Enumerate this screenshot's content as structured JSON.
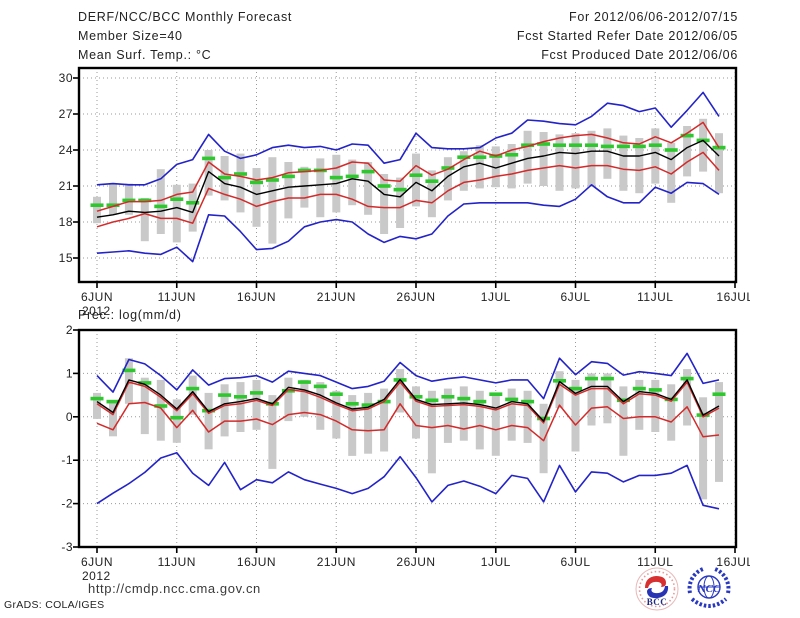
{
  "header": {
    "title": "DERF/NCC/BCC Monthly Forecast",
    "member_size": "Member Size=40",
    "panel1_label": "Mean Surf. Temp.: °C",
    "for_range": "For 2012/06/06-2012/07/15",
    "refer_date": "Fcst Started Refer Date 2012/06/05",
    "produced_date": "Fcst Produced Date 2012/06/06"
  },
  "footer": {
    "url": "http://cmdp.ncc.cma.gov.cn",
    "grads_credit": "GrADS: COLA/IGES",
    "logo_bcc": "BCC",
    "logo_ncc": "NCC"
  },
  "colors": {
    "minmax_line": "#2323c8",
    "quartile_line": "#d42a2a",
    "mean_line": "#000000",
    "obs_dash": "#2ec82e",
    "spread_bar": "#c9c9c9",
    "grid": "#9a9a9a"
  },
  "chart_data": [
    {
      "type": "line",
      "title": "Mean Surf. Temp.: °C",
      "ylabel": "°C",
      "ylim": [
        13,
        30.8
      ],
      "yticks": [
        30,
        27,
        24,
        21,
        18,
        15
      ],
      "x_tick_labels": [
        "6JUN",
        "11JUN",
        "16JUN",
        "21JUN",
        "26JUN",
        "1JUL",
        "6JUL",
        "11JUL",
        "16JUL"
      ],
      "x_tick_days": [
        1,
        6,
        11,
        16,
        21,
        26,
        31,
        36,
        41
      ],
      "year_label": "2012",
      "grid": true,
      "legend": "none",
      "series": {
        "ens_max": [
          21.1,
          21.2,
          21.1,
          21.1,
          21.6,
          22.8,
          23.2,
          25.3,
          23.9,
          23.3,
          23.6,
          24.2,
          24.4,
          24.2,
          24.3,
          24.0,
          24.5,
          24.4,
          22.9,
          23.2,
          25.4,
          24.2,
          24.1,
          24.1,
          24.2,
          25.0,
          25.4,
          26.5,
          26.4,
          26.2,
          26.1,
          26.8,
          27.9,
          27.7,
          27.2,
          27.5,
          25.9,
          27.3,
          28.8,
          26.8
        ],
        "ens_p75": [
          18.9,
          19.3,
          19.7,
          19.7,
          19.8,
          20.3,
          20.5,
          23.0,
          22.0,
          21.8,
          21.5,
          21.7,
          22.1,
          22.2,
          22.3,
          22.5,
          23.0,
          22.9,
          21.5,
          21.4,
          22.7,
          21.9,
          22.4,
          23.2,
          23.9,
          23.5,
          24.0,
          24.3,
          24.7,
          25.0,
          25.2,
          25.3,
          25.0,
          24.6,
          24.5,
          25.1,
          24.6,
          25.4,
          26.3,
          24.2
        ],
        "ens_mean": [
          18.4,
          18.6,
          18.9,
          18.8,
          18.9,
          19.2,
          18.8,
          22.2,
          21.2,
          20.9,
          20.3,
          20.6,
          20.9,
          21.0,
          21.1,
          21.2,
          21.6,
          21.4,
          20.3,
          20.1,
          21.3,
          20.6,
          21.8,
          22.6,
          22.9,
          22.5,
          22.9,
          23.3,
          23.5,
          23.8,
          23.7,
          23.9,
          23.9,
          23.5,
          23.5,
          23.8,
          23.2,
          24.2,
          24.8,
          23.5
        ],
        "obs_dash": [
          19.4,
          19.4,
          19.8,
          19.8,
          19.3,
          19.9,
          19.6,
          23.3,
          21.7,
          22.0,
          21.3,
          21.5,
          21.8,
          22.3,
          22.3,
          21.7,
          21.8,
          22.2,
          21.0,
          20.7,
          21.9,
          21.4,
          22.5,
          23.4,
          23.4,
          23.5,
          23.6,
          24.4,
          24.5,
          24.4,
          24.4,
          24.4,
          24.3,
          24.3,
          24.3,
          24.4,
          24.0,
          25.2,
          24.8,
          24.2
        ],
        "ens_p25": [
          17.6,
          18.0,
          18.3,
          18.7,
          18.3,
          18.3,
          17.9,
          20.8,
          20.3,
          19.9,
          19.3,
          19.7,
          20.0,
          20.0,
          20.3,
          20.3,
          19.9,
          19.3,
          19.2,
          19.2,
          19.8,
          19.6,
          20.6,
          21.3,
          21.5,
          21.8,
          22.0,
          22.3,
          22.5,
          22.7,
          22.5,
          22.7,
          22.7,
          22.4,
          22.3,
          22.6,
          22.0,
          23.0,
          23.8,
          22.3
        ],
        "ens_min": [
          15.4,
          15.5,
          15.6,
          15.4,
          15.3,
          15.9,
          14.7,
          18.6,
          18.5,
          17.2,
          15.7,
          15.8,
          16.4,
          17.6,
          18.0,
          18.2,
          18.0,
          17.0,
          16.3,
          16.8,
          16.6,
          17.0,
          18.5,
          19.5,
          19.6,
          19.6,
          19.6,
          19.6,
          19.4,
          19.3,
          19.9,
          21.1,
          20.1,
          19.6,
          19.6,
          20.9,
          20.4,
          21.3,
          21.2,
          20.3
        ]
      },
      "spread_bar_hi": [
        20.1,
        21.2,
        21.2,
        20.0,
        22.4,
        21.1,
        21.2,
        24.0,
        23.5,
        23.7,
        22.5,
        23.4,
        23.0,
        22.6,
        23.3,
        23.6,
        23.2,
        23.0,
        22.0,
        21.7,
        23.7,
        22.3,
        23.4,
        23.9,
        24.4,
        24.3,
        24.5,
        25.6,
        25.5,
        25.3,
        25.4,
        25.6,
        25.8,
        25.2,
        25.0,
        25.8,
        24.6,
        26.0,
        26.6,
        25.4
      ],
      "spread_bar_lo": [
        17.9,
        18.6,
        18.6,
        16.4,
        17.0,
        16.3,
        17.2,
        20.2,
        19.8,
        18.8,
        17.6,
        16.2,
        18.3,
        19.2,
        18.4,
        18.8,
        19.4,
        18.6,
        17.0,
        17.5,
        19.3,
        18.4,
        19.8,
        20.6,
        20.8,
        20.9,
        20.8,
        21.2,
        21.0,
        20.6,
        20.8,
        21.0,
        21.6,
        20.6,
        20.4,
        21.2,
        19.6,
        21.8,
        22.2,
        20.4
      ]
    },
    {
      "type": "line",
      "title": "Prec.: log(mm/d)",
      "ylabel": "log(mm/d)",
      "ylim": [
        -3,
        2
      ],
      "yticks": [
        2,
        1,
        0,
        -1,
        -2,
        -3
      ],
      "x_tick_labels": [
        "6JUN",
        "11JUN",
        "16JUN",
        "21JUN",
        "26JUN",
        "1JUL",
        "6JUL",
        "11JUL",
        "16JUL"
      ],
      "x_tick_days": [
        1,
        6,
        11,
        16,
        21,
        26,
        31,
        36,
        41
      ],
      "year_label": "2012",
      "grid": true,
      "legend": "none",
      "series": {
        "ens_max": [
          0.95,
          0.57,
          1.32,
          1.22,
          0.95,
          0.62,
          1.08,
          0.73,
          0.88,
          0.9,
          0.95,
          0.8,
          1.05,
          1.0,
          0.95,
          0.8,
          0.65,
          0.7,
          0.82,
          1.25,
          0.95,
          0.82,
          0.88,
          0.92,
          0.85,
          0.78,
          0.85,
          0.85,
          0.42,
          1.35,
          0.97,
          1.27,
          1.23,
          0.96,
          1.04,
          1.0,
          0.95,
          1.46,
          0.77,
          0.85
        ],
        "ens_p75": [
          0.3,
          0.05,
          0.8,
          0.7,
          0.45,
          0.14,
          0.53,
          0.08,
          0.26,
          0.3,
          0.38,
          0.26,
          0.63,
          0.58,
          0.45,
          0.28,
          0.14,
          0.18,
          0.35,
          0.8,
          0.36,
          0.24,
          0.26,
          0.28,
          0.24,
          0.16,
          0.3,
          0.26,
          -0.14,
          0.75,
          0.5,
          0.65,
          0.65,
          0.3,
          0.53,
          0.5,
          0.36,
          0.8,
          0.0,
          0.2
        ],
        "ens_mean": [
          0.35,
          0.1,
          0.85,
          0.75,
          0.5,
          0.18,
          0.58,
          0.12,
          0.3,
          0.35,
          0.42,
          0.3,
          0.68,
          0.62,
          0.5,
          0.32,
          0.18,
          0.22,
          0.4,
          0.86,
          0.4,
          0.28,
          0.3,
          0.32,
          0.28,
          0.2,
          0.35,
          0.3,
          -0.1,
          0.81,
          0.54,
          0.7,
          0.7,
          0.35,
          0.58,
          0.54,
          0.4,
          0.85,
          0.04,
          0.25
        ],
        "obs_dash": [
          0.42,
          0.35,
          1.07,
          0.78,
          0.25,
          -0.02,
          0.65,
          0.14,
          0.5,
          0.46,
          0.55,
          0.3,
          0.6,
          0.8,
          0.7,
          0.52,
          0.3,
          0.27,
          0.35,
          0.85,
          0.46,
          0.38,
          0.46,
          0.42,
          0.35,
          0.52,
          0.4,
          0.35,
          -0.04,
          0.83,
          0.65,
          0.88,
          0.88,
          0.38,
          0.65,
          0.62,
          0.4,
          0.88,
          0.04,
          0.52
        ],
        "ens_p25": [
          -0.15,
          -0.3,
          0.3,
          0.33,
          0.2,
          -0.25,
          0.15,
          -0.35,
          -0.1,
          -0.1,
          -0.05,
          -0.18,
          0.05,
          0.1,
          0.05,
          -0.1,
          -0.3,
          -0.32,
          -0.3,
          0.3,
          -0.2,
          -0.25,
          -0.2,
          -0.28,
          -0.2,
          -0.3,
          -0.2,
          -0.25,
          -0.55,
          0.27,
          -0.19,
          0.2,
          0.23,
          -0.04,
          0.0,
          0.0,
          -0.12,
          0.23,
          -0.46,
          -0.42
        ],
        "ens_min": [
          -2.0,
          -1.76,
          -1.54,
          -1.28,
          -0.95,
          -0.83,
          -1.3,
          -1.58,
          -1.05,
          -1.68,
          -1.45,
          -1.52,
          -1.27,
          -1.45,
          -1.55,
          -1.65,
          -1.77,
          -1.65,
          -1.38,
          -0.92,
          -1.4,
          -1.96,
          -1.58,
          -1.48,
          -1.6,
          -1.77,
          -1.35,
          -1.42,
          -1.96,
          -1.12,
          -1.73,
          -1.27,
          -1.3,
          -1.5,
          -1.35,
          -1.35,
          -1.3,
          -1.12,
          -2.04,
          -2.12
        ]
      },
      "spread_bar_hi": [
        0.55,
        0.35,
        1.35,
        0.9,
        0.85,
        0.4,
        0.95,
        0.55,
        0.75,
        0.8,
        0.85,
        0.5,
        0.9,
        0.85,
        0.8,
        0.6,
        0.5,
        0.55,
        0.65,
        1.1,
        0.7,
        0.6,
        0.65,
        0.7,
        0.6,
        0.55,
        0.65,
        0.6,
        0.3,
        1.05,
        0.85,
        1.0,
        1.0,
        0.7,
        0.85,
        0.85,
        0.75,
        1.1,
        0.45,
        0.8
      ],
      "spread_bar_lo": [
        -0.05,
        -0.45,
        0.3,
        -0.4,
        -0.55,
        -0.6,
        0.05,
        -0.75,
        -0.45,
        -0.35,
        -0.3,
        -1.2,
        -0.1,
        0.0,
        -0.3,
        -0.5,
        -0.9,
        -0.85,
        -0.8,
        0.1,
        -0.5,
        -1.3,
        -0.6,
        -0.55,
        -0.75,
        -0.9,
        -0.55,
        -0.6,
        -1.3,
        0.2,
        -0.8,
        -0.2,
        -0.15,
        -0.9,
        -0.3,
        -0.35,
        -0.55,
        -0.2,
        -1.9,
        -1.5
      ]
    }
  ]
}
